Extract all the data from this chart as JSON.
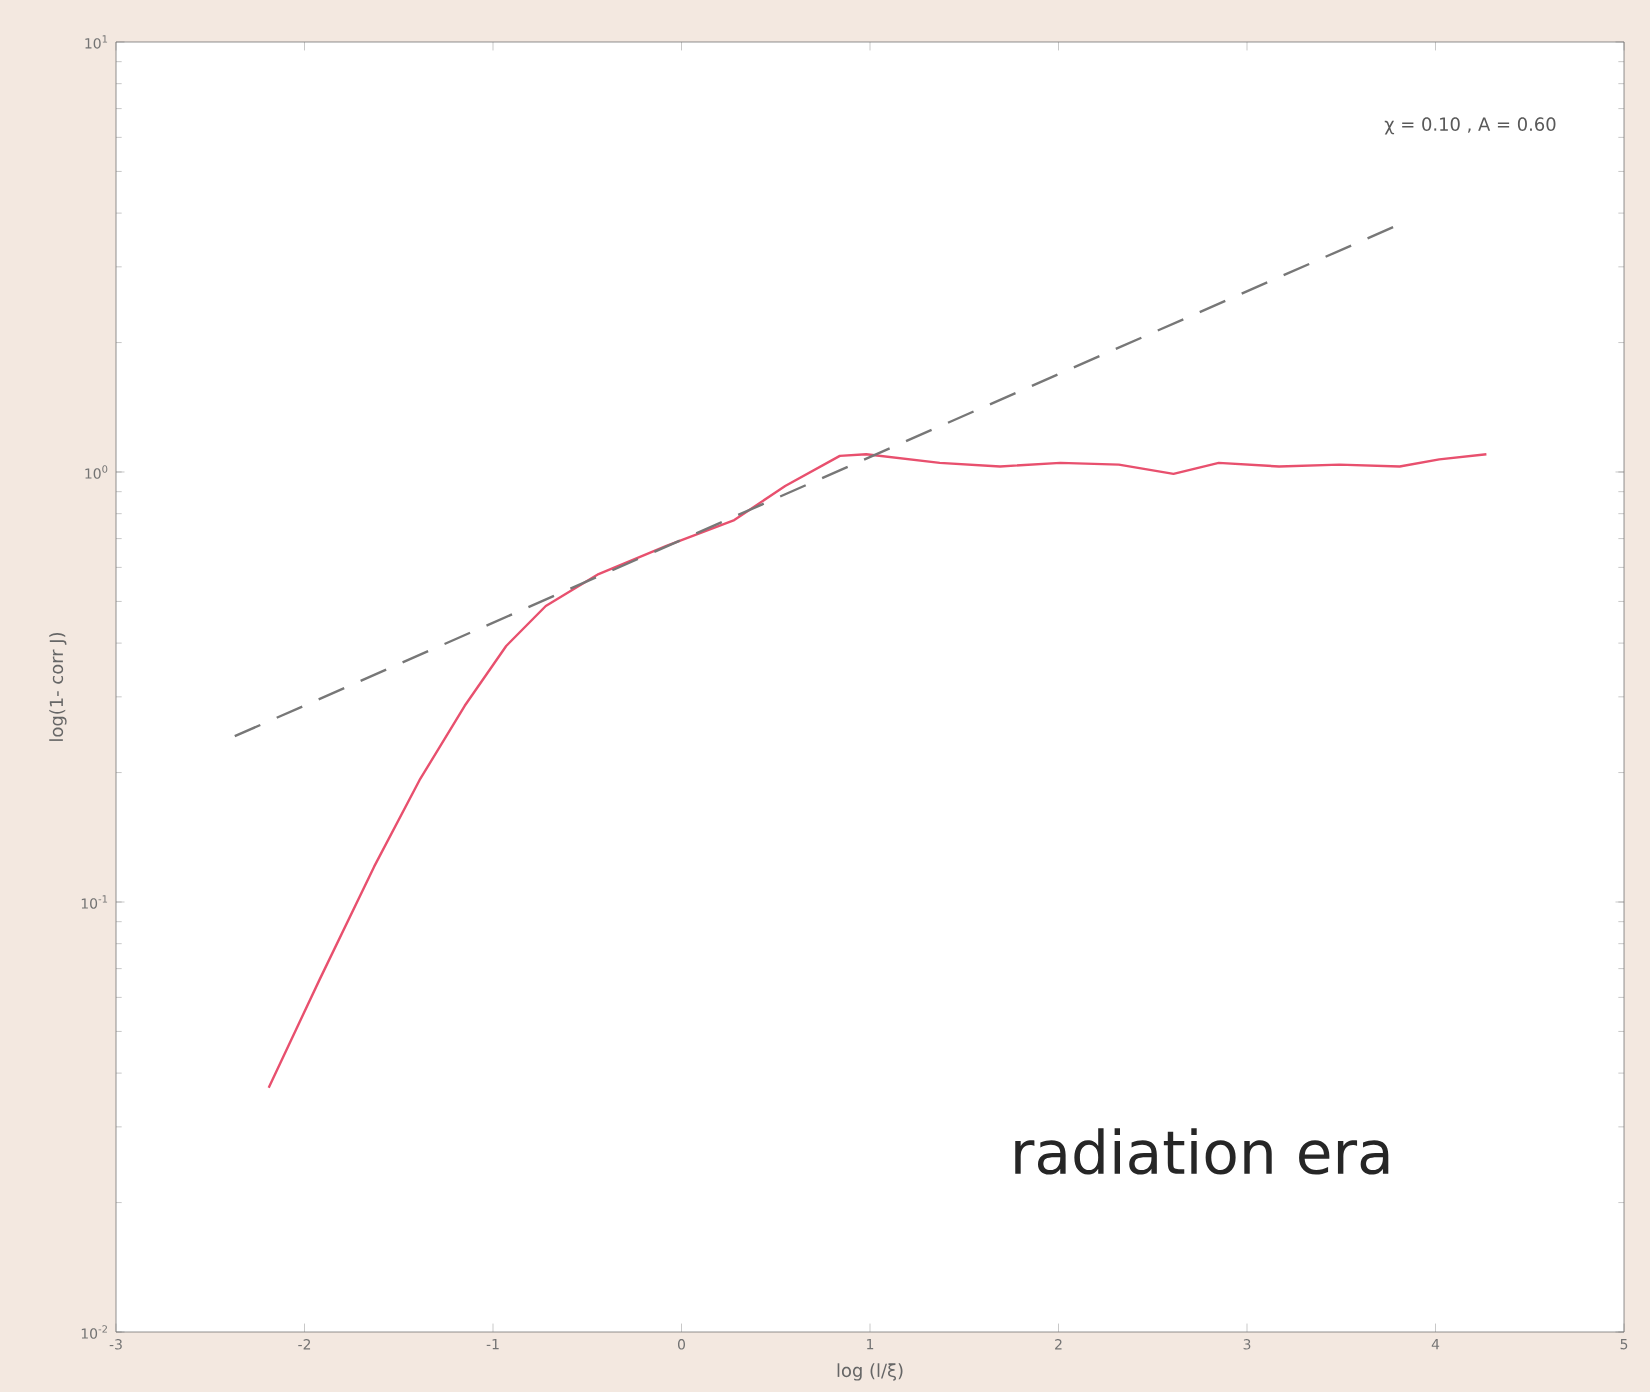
{
  "chart_data": {
    "type": "line",
    "xlabel": "log (l/ξ)",
    "ylabel": "log(1- corr J)",
    "log": "y",
    "xlim": [
      -3,
      5
    ],
    "xticks": [
      -3,
      -2,
      -1,
      0,
      1,
      2,
      3,
      4,
      5
    ],
    "ylim": [
      0.01,
      10
    ],
    "yticks": [
      {
        "value": 0.01,
        "label": "10$^{-2}$"
      },
      {
        "value": 0.1,
        "label": "10$^{-1}$"
      },
      {
        "value": 1,
        "label": "10$^{0}$"
      },
      {
        "value": 10,
        "label": "10$^{1}$"
      }
    ],
    "grid": false,
    "marker": "none",
    "annotations": [
      "χ = 0.10 , A = 0.60",
      "radiation era"
    ],
    "series": [
      {
        "color": "#e8506e",
        "line_style": "solid",
        "x": [
          -2.19,
          -1.92,
          -1.63,
          -1.39,
          -1.15,
          -0.93,
          -0.72,
          -0.44,
          -0.08,
          0.28,
          0.55,
          0.84,
          0.98,
          1.37,
          1.69,
          2.01,
          2.32,
          2.61,
          2.85,
          3.17,
          3.49,
          3.81,
          4.02,
          4.27
        ],
        "values": [
          0.037,
          0.066,
          0.121,
          0.192,
          0.286,
          0.394,
          0.488,
          0.579,
          0.673,
          0.773,
          0.928,
          1.09,
          1.1,
          1.05,
          1.03,
          1.05,
          1.04,
          0.99,
          1.05,
          1.03,
          1.04,
          1.03,
          1.07,
          1.1
        ]
      },
      {
        "color": "#777777",
        "line_style": "dashed",
        "x": [
          -2.37,
          3.81
        ],
        "values": [
          0.243,
          3.77
        ]
      }
    ]
  }
}
